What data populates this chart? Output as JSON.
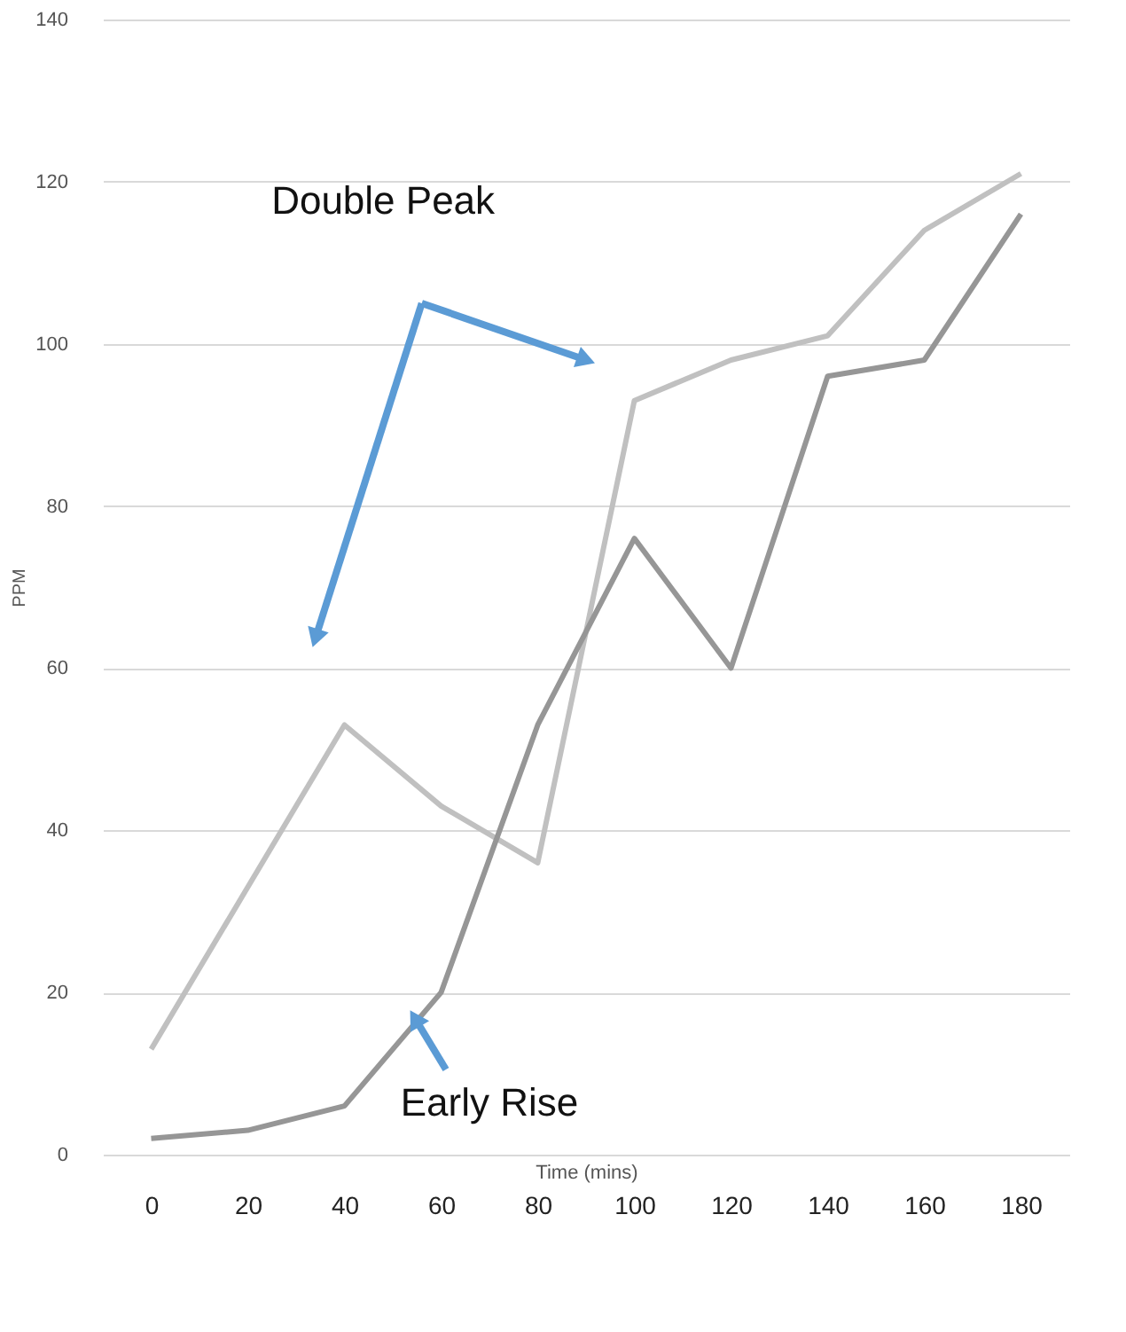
{
  "chart_data": {
    "type": "line",
    "xlabel": "Time (mins)",
    "ylabel": "PPM",
    "categories": [
      "0",
      "20",
      "40",
      "60",
      "80",
      "100",
      "120",
      "140",
      "160",
      "180"
    ],
    "series": [
      {
        "color": "#c0c0c0",
        "values": [
          13,
          33,
          53,
          43,
          36,
          93,
          98,
          101,
          114,
          121
        ]
      },
      {
        "color": "#969696",
        "values": [
          2,
          3,
          6,
          20,
          53,
          76,
          60,
          96,
          98,
          116
        ]
      }
    ],
    "ylim": [
      0,
      140
    ],
    "yticks": [
      0,
      20,
      40,
      60,
      80,
      100,
      120,
      140
    ],
    "grid": "y",
    "legend": false,
    "marker": "none",
    "line_style": "solid",
    "annotations": [
      "Double Peak",
      "Early Rise"
    ]
  }
}
